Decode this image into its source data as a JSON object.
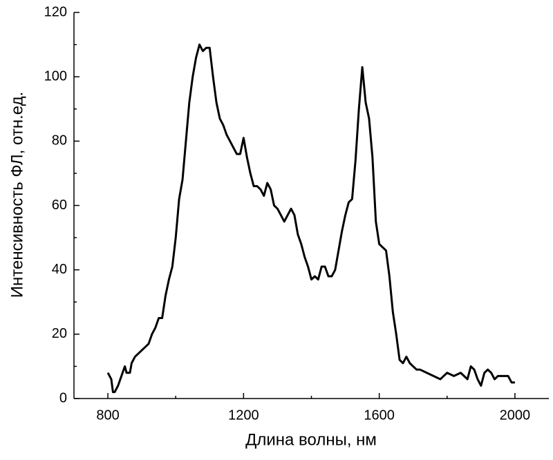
{
  "chart_data": {
    "type": "line",
    "xlabel": "Длина волны, нм",
    "ylabel": "Интенсивность ФЛ, отн.ед.",
    "xlim": [
      700,
      2100
    ],
    "xticks": [
      800,
      1200,
      1600,
      2000
    ],
    "xminorticks": [
      1000,
      1400,
      1800
    ],
    "ylim": [
      0,
      120
    ],
    "yticks": [
      0,
      20,
      40,
      60,
      80,
      100,
      120
    ],
    "yminorticks": [
      10,
      30,
      50,
      70,
      90,
      110
    ],
    "grid": false,
    "series": [
      {
        "color": "#000000",
        "x": [
          800,
          805,
          810,
          815,
          820,
          830,
          840,
          850,
          855,
          865,
          870,
          880,
          890,
          900,
          910,
          920,
          930,
          940,
          950,
          960,
          970,
          980,
          990,
          1000,
          1010,
          1020,
          1030,
          1040,
          1050,
          1060,
          1070,
          1080,
          1090,
          1100,
          1110,
          1120,
          1130,
          1140,
          1150,
          1160,
          1170,
          1180,
          1190,
          1200,
          1210,
          1220,
          1230,
          1240,
          1250,
          1260,
          1270,
          1280,
          1290,
          1300,
          1310,
          1320,
          1330,
          1340,
          1350,
          1360,
          1370,
          1380,
          1390,
          1400,
          1410,
          1420,
          1430,
          1440,
          1450,
          1460,
          1470,
          1480,
          1490,
          1500,
          1510,
          1520,
          1530,
          1540,
          1550,
          1560,
          1570,
          1580,
          1590,
          1600,
          1610,
          1620,
          1630,
          1640,
          1650,
          1660,
          1670,
          1680,
          1690,
          1700,
          1710,
          1720,
          1740,
          1760,
          1780,
          1800,
          1820,
          1840,
          1850,
          1860,
          1870,
          1880,
          1890,
          1900,
          1910,
          1920,
          1930,
          1940,
          1950,
          1960,
          1980,
          1990,
          2000
        ],
        "values": [
          8,
          7,
          6,
          2,
          2,
          4,
          7,
          10,
          8,
          8,
          11,
          13,
          14,
          15,
          16,
          17,
          20,
          22,
          25,
          25,
          32,
          37,
          41,
          50,
          62,
          68,
          80,
          92,
          100,
          106,
          110,
          108,
          109,
          109,
          100,
          92,
          87,
          85,
          82,
          80,
          78,
          76,
          76,
          81,
          75,
          70,
          66,
          66,
          65,
          63,
          67,
          65,
          60,
          59,
          57,
          55,
          57,
          59,
          57,
          51,
          48,
          44,
          41,
          37,
          38,
          37,
          41,
          41,
          38,
          38,
          40,
          46,
          52,
          57,
          61,
          62,
          74,
          90,
          103,
          92,
          87,
          75,
          55,
          48,
          47,
          46,
          38,
          27,
          20,
          12,
          11,
          13,
          11,
          10,
          9,
          9,
          8,
          7,
          6,
          8,
          7,
          8,
          7,
          6,
          10,
          9,
          6,
          4,
          8,
          9,
          8,
          6,
          7,
          7,
          7,
          5,
          5
        ]
      }
    ]
  }
}
